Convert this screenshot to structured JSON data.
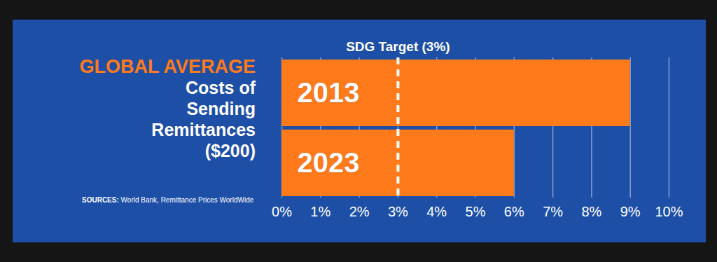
{
  "chart_data": {
    "type": "bar",
    "orientation": "horizontal",
    "title": "GLOBAL AVERAGE",
    "subtitle": "Costs of Sending Remittances ($200)",
    "source_label": "SOURCES:",
    "source": "World Bank, Remittance Prices WorldWide",
    "categories": [
      "2013",
      "2023"
    ],
    "values": [
      9,
      6
    ],
    "color": "#ff7a1a",
    "xlim": [
      0,
      10
    ],
    "xticks": [
      {
        "value": 0,
        "label": "0%"
      },
      {
        "value": 1,
        "label": "1%"
      },
      {
        "value": 2,
        "label": "2%"
      },
      {
        "value": 3,
        "label": "3%"
      },
      {
        "value": 4,
        "label": "4%"
      },
      {
        "value": 5,
        "label": "5%"
      },
      {
        "value": 6,
        "label": "6%"
      },
      {
        "value": 7,
        "label": "7%"
      },
      {
        "value": 8,
        "label": "8%"
      },
      {
        "value": 9,
        "label": "9%"
      },
      {
        "value": 10,
        "label": "10%"
      }
    ],
    "grid": true,
    "annotations": [
      {
        "text": "SDG Target (3%)",
        "x": 3
      }
    ]
  }
}
